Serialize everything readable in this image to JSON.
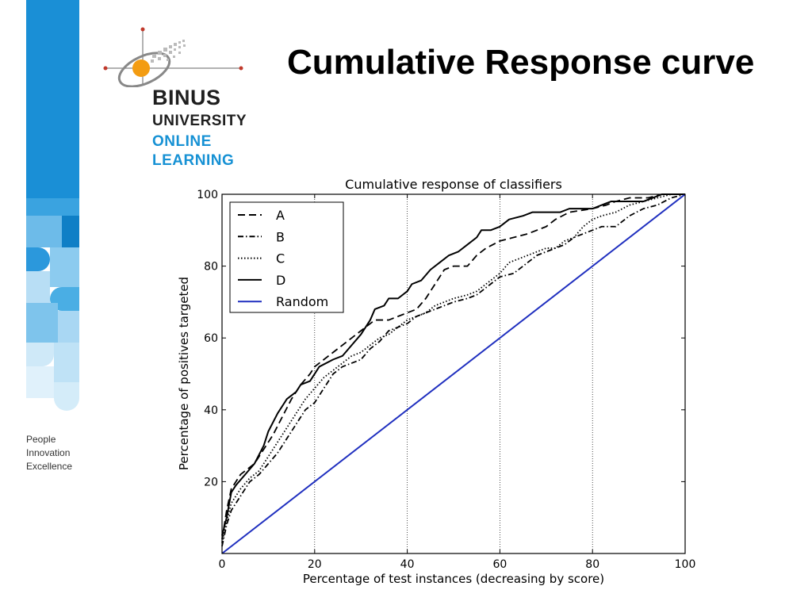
{
  "slide": {
    "title": "Cumulative Response curve"
  },
  "brand": {
    "logo_line1": "BINUS",
    "logo_line2": "UNIVERSITY",
    "logo_line3": "ONLINE",
    "logo_line4": "LEARNING",
    "tagline": [
      "People",
      "Innovation",
      "Excellence"
    ],
    "colors": {
      "accent_blue": "#1691d4",
      "strip_blue": "#1a8fd6",
      "orange": "#f39c12"
    }
  },
  "chart_data": {
    "type": "line",
    "title": "Cumulative response of classifiers",
    "xlabel": "Percentage of test instances (decreasing by score)",
    "ylabel": "Percentage of positives targeted",
    "xlim": [
      0,
      100
    ],
    "ylim": [
      0,
      100
    ],
    "xticks": [
      0,
      20,
      40,
      60,
      80,
      100
    ],
    "yticks": [
      20,
      40,
      60,
      80,
      100
    ],
    "grid": "vertical dotted at x ticks",
    "legend_position": "top-left",
    "series": [
      {
        "name": "A",
        "style": "dashed",
        "color": "#000000",
        "points": [
          [
            0,
            4
          ],
          [
            1,
            12
          ],
          [
            2,
            18
          ],
          [
            4,
            22
          ],
          [
            7,
            25
          ],
          [
            9,
            29
          ],
          [
            11,
            33
          ],
          [
            13,
            38
          ],
          [
            15,
            43
          ],
          [
            17,
            47
          ],
          [
            19,
            50
          ],
          [
            20,
            52
          ],
          [
            22,
            54
          ],
          [
            25,
            57
          ],
          [
            28,
            60
          ],
          [
            30,
            62
          ],
          [
            33,
            65
          ],
          [
            36,
            65
          ],
          [
            38,
            66
          ],
          [
            40,
            67
          ],
          [
            42,
            68
          ],
          [
            44,
            71
          ],
          [
            46,
            75
          ],
          [
            48,
            79
          ],
          [
            50,
            80
          ],
          [
            53,
            80
          ],
          [
            55,
            83
          ],
          [
            57,
            85
          ],
          [
            60,
            87
          ],
          [
            63,
            88
          ],
          [
            66,
            89
          ],
          [
            70,
            91
          ],
          [
            72,
            93
          ],
          [
            75,
            95
          ],
          [
            80,
            96
          ],
          [
            83,
            97
          ],
          [
            85,
            98
          ],
          [
            88,
            99
          ],
          [
            92,
            99
          ],
          [
            95,
            100
          ],
          [
            100,
            100
          ]
        ]
      },
      {
        "name": "B",
        "style": "dashdot",
        "color": "#000000",
        "points": [
          [
            0,
            2
          ],
          [
            1,
            8
          ],
          [
            2,
            12
          ],
          [
            4,
            16
          ],
          [
            6,
            20
          ],
          [
            8,
            22
          ],
          [
            10,
            25
          ],
          [
            12,
            28
          ],
          [
            14,
            32
          ],
          [
            16,
            36
          ],
          [
            18,
            40
          ],
          [
            20,
            42
          ],
          [
            22,
            46
          ],
          [
            24,
            50
          ],
          [
            26,
            52
          ],
          [
            28,
            53
          ],
          [
            30,
            54
          ],
          [
            32,
            57
          ],
          [
            34,
            59
          ],
          [
            36,
            62
          ],
          [
            38,
            63
          ],
          [
            40,
            64
          ],
          [
            42,
            66
          ],
          [
            44,
            67
          ],
          [
            46,
            68
          ],
          [
            48,
            69
          ],
          [
            50,
            70
          ],
          [
            53,
            71
          ],
          [
            55,
            72
          ],
          [
            58,
            75
          ],
          [
            60,
            77
          ],
          [
            63,
            78
          ],
          [
            66,
            81
          ],
          [
            68,
            83
          ],
          [
            70,
            84
          ],
          [
            72,
            85
          ],
          [
            74,
            86
          ],
          [
            76,
            88
          ],
          [
            78,
            89
          ],
          [
            80,
            90
          ],
          [
            82,
            91
          ],
          [
            85,
            91
          ],
          [
            88,
            94
          ],
          [
            91,
            96
          ],
          [
            94,
            97
          ],
          [
            97,
            99
          ],
          [
            100,
            100
          ]
        ]
      },
      {
        "name": "C",
        "style": "dotted",
        "color": "#000000",
        "points": [
          [
            0,
            3
          ],
          [
            1,
            9
          ],
          [
            2,
            14
          ],
          [
            4,
            18
          ],
          [
            6,
            21
          ],
          [
            8,
            23
          ],
          [
            10,
            27
          ],
          [
            12,
            31
          ],
          [
            14,
            35
          ],
          [
            16,
            39
          ],
          [
            18,
            43
          ],
          [
            20,
            46
          ],
          [
            22,
            49
          ],
          [
            24,
            51
          ],
          [
            26,
            53
          ],
          [
            28,
            55
          ],
          [
            30,
            56
          ],
          [
            32,
            58
          ],
          [
            34,
            60
          ],
          [
            36,
            61
          ],
          [
            38,
            63
          ],
          [
            40,
            65
          ],
          [
            42,
            66
          ],
          [
            44,
            67
          ],
          [
            46,
            69
          ],
          [
            48,
            70
          ],
          [
            50,
            71
          ],
          [
            53,
            72
          ],
          [
            55,
            73
          ],
          [
            58,
            76
          ],
          [
            60,
            78
          ],
          [
            62,
            81
          ],
          [
            64,
            82
          ],
          [
            66,
            83
          ],
          [
            68,
            84
          ],
          [
            70,
            85
          ],
          [
            72,
            85
          ],
          [
            74,
            87
          ],
          [
            76,
            88
          ],
          [
            78,
            91
          ],
          [
            80,
            93
          ],
          [
            82,
            94
          ],
          [
            85,
            95
          ],
          [
            88,
            97
          ],
          [
            91,
            98
          ],
          [
            94,
            99
          ],
          [
            97,
            100
          ],
          [
            100,
            100
          ]
        ]
      },
      {
        "name": "D",
        "style": "solid",
        "color": "#000000",
        "points": [
          [
            0,
            5
          ],
          [
            1,
            10
          ],
          [
            2,
            17
          ],
          [
            3,
            19
          ],
          [
            5,
            22
          ],
          [
            7,
            25
          ],
          [
            9,
            30
          ],
          [
            10,
            34
          ],
          [
            12,
            39
          ],
          [
            14,
            43
          ],
          [
            16,
            45
          ],
          [
            17,
            47
          ],
          [
            19,
            48
          ],
          [
            21,
            52
          ],
          [
            24,
            54
          ],
          [
            26,
            55
          ],
          [
            28,
            58
          ],
          [
            30,
            61
          ],
          [
            32,
            65
          ],
          [
            33,
            68
          ],
          [
            35,
            69
          ],
          [
            36,
            71
          ],
          [
            38,
            71
          ],
          [
            40,
            73
          ],
          [
            41,
            75
          ],
          [
            43,
            76
          ],
          [
            45,
            79
          ],
          [
            47,
            81
          ],
          [
            49,
            83
          ],
          [
            51,
            84
          ],
          [
            53,
            86
          ],
          [
            55,
            88
          ],
          [
            56,
            90
          ],
          [
            58,
            90
          ],
          [
            60,
            91
          ],
          [
            62,
            93
          ],
          [
            65,
            94
          ],
          [
            67,
            95
          ],
          [
            70,
            95
          ],
          [
            73,
            95
          ],
          [
            75,
            96
          ],
          [
            78,
            96
          ],
          [
            80,
            96
          ],
          [
            82,
            97
          ],
          [
            84,
            98
          ],
          [
            86,
            98
          ],
          [
            89,
            98
          ],
          [
            91,
            98
          ],
          [
            93,
            99
          ],
          [
            95,
            100
          ],
          [
            100,
            100
          ]
        ]
      },
      {
        "name": "Random",
        "style": "solid",
        "color": "#1f2fbf",
        "points": [
          [
            0,
            0
          ],
          [
            100,
            100
          ]
        ]
      }
    ]
  }
}
